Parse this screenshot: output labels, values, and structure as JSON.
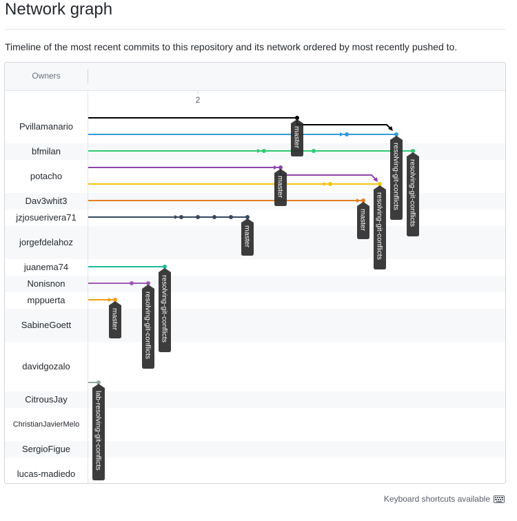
{
  "page": {
    "title": "Network graph",
    "description": "Timeline of the most recent commits to this repository and its network ordered by most recently pushed to."
  },
  "graph": {
    "owners_header": "Owners",
    "date_label": "2",
    "owners": [
      {
        "name": "Pvillamanario",
        "small": false
      },
      {
        "name": "bfmilan",
        "small": false
      },
      {
        "name": "potacho",
        "small": false
      },
      {
        "name": "Dav3whit3",
        "small": false
      },
      {
        "name": "jzjosuerivera71",
        "small": false
      },
      {
        "name": "jorgefdelahoz",
        "small": false
      },
      {
        "name": "juanema74",
        "small": false
      },
      {
        "name": "Nonisnon",
        "small": false
      },
      {
        "name": "mppuerta",
        "small": false
      },
      {
        "name": "SabineGoett",
        "small": false
      },
      {
        "name": "davidgozalo",
        "small": false
      },
      {
        "name": "CitrousJay",
        "small": false
      },
      {
        "name": "ChristianJavierMelo",
        "small": true
      },
      {
        "name": "SergioFigue",
        "small": false
      },
      {
        "name": "lucas-madiedo",
        "small": false
      }
    ],
    "branch_labels": [
      {
        "text": "master"
      },
      {
        "text": "resolving-git-conflicts"
      },
      {
        "text": "resolving-git-conflicts"
      },
      {
        "text": "master"
      },
      {
        "text": "resolving-git-conflicts"
      },
      {
        "text": "master"
      },
      {
        "text": "master"
      },
      {
        "text": "resolving-git-conflicts"
      },
      {
        "text": "resolving-git-conflicts"
      },
      {
        "text": "master"
      },
      {
        "text": "lab-resolving-git-conflicts"
      }
    ],
    "colors": {
      "black": "#000000",
      "blue": "#3498db",
      "green": "#2ecc71",
      "purple": "#8e44ad",
      "yellow": "#f1c40f",
      "orange": "#e67e22",
      "navy": "#34495e",
      "teal": "#1abc9c",
      "violet": "#9b59b6",
      "amber": "#f39c12",
      "gray": "#95a5a6"
    }
  },
  "footer": {
    "shortcuts": "Keyboard shortcuts available"
  }
}
